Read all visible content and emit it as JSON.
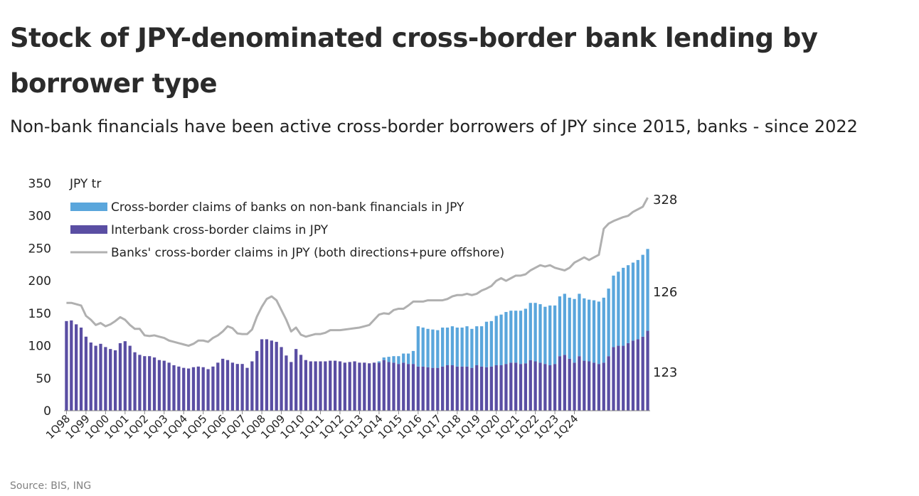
{
  "header": {
    "title": "Stock of JPY-denominated cross-border bank lending by borrower type",
    "subtitle": "Non-bank financials have been active cross-border borrowers of JPY since 2015, banks - since 2022"
  },
  "footer": {
    "source": "Source: BIS, ING"
  },
  "chart_data": {
    "type": "bar",
    "stacked": true,
    "ylabel": "JPY tr",
    "ylim": [
      0,
      350
    ],
    "yticks": [
      0,
      50,
      100,
      150,
      200,
      250,
      300,
      350
    ],
    "grid": false,
    "legend_position": "top-left",
    "x_tick_labels": [
      "1Q98",
      "1Q99",
      "1Q00",
      "1Q01",
      "1Q02",
      "1Q03",
      "1Q04",
      "1Q05",
      "1Q06",
      "1Q07",
      "1Q08",
      "1Q09",
      "1Q10",
      "1Q11",
      "1Q12",
      "1Q13",
      "1Q14",
      "1Q15",
      "1Q16",
      "1Q17",
      "1Q18",
      "1Q19",
      "1Q20",
      "1Q21",
      "1Q22",
      "1Q23",
      "1Q24"
    ],
    "end_labels": {
      "total_line": "328",
      "non_bank": "126",
      "interbank": "123"
    },
    "colors": {
      "interbank": "#5a4ea3",
      "non_bank": "#5aa6dc",
      "total_line": "#b0b0b0"
    },
    "series": [
      {
        "name": "Cross-border claims of banks on non-bank financials in JPY",
        "type": "bar",
        "stack_order": 2,
        "values": [
          0,
          0,
          0,
          0,
          0,
          0,
          0,
          0,
          0,
          0,
          0,
          0,
          0,
          0,
          0,
          0,
          0,
          0,
          0,
          0,
          0,
          0,
          0,
          0,
          0,
          0,
          0,
          0,
          0,
          0,
          0,
          0,
          0,
          0,
          0,
          0,
          0,
          0,
          0,
          0,
          0,
          0,
          0,
          0,
          0,
          0,
          0,
          0,
          0,
          0,
          0,
          0,
          0,
          0,
          0,
          0,
          0,
          0,
          0,
          0,
          0,
          0,
          0,
          0,
          2,
          4,
          8,
          10,
          12,
          14,
          16,
          20,
          62,
          60,
          59,
          59,
          58,
          60,
          58,
          60,
          60,
          60,
          62,
          60,
          60,
          62,
          70,
          70,
          76,
          78,
          80,
          80,
          80,
          82,
          84,
          88,
          90,
          90,
          88,
          92,
          90,
          92,
          94,
          94,
          98,
          96,
          96,
          95,
          96,
          96,
          100,
          104,
          110,
          114,
          120,
          120,
          120,
          122,
          126,
          126
        ]
      },
      {
        "name": "Interbank cross-border claims in JPY",
        "type": "bar",
        "stack_order": 1,
        "values": [
          138,
          139,
          133,
          128,
          114,
          105,
          100,
          103,
          98,
          95,
          93,
          104,
          107,
          100,
          90,
          86,
          84,
          84,
          82,
          78,
          77,
          74,
          70,
          68,
          66,
          65,
          67,
          68,
          67,
          64,
          68,
          74,
          80,
          78,
          74,
          72,
          72,
          66,
          76,
          92,
          110,
          110,
          108,
          106,
          98,
          85,
          75,
          95,
          86,
          78,
          76,
          76,
          76,
          76,
          77,
          77,
          76,
          74,
          75,
          76,
          74,
          74,
          73,
          74,
          74,
          78,
          75,
          74,
          72,
          74,
          72,
          72,
          68,
          68,
          67,
          66,
          66,
          68,
          70,
          70,
          68,
          68,
          68,
          66,
          70,
          68,
          67,
          68,
          70,
          70,
          72,
          74,
          74,
          72,
          73,
          78,
          76,
          74,
          72,
          70,
          72,
          84,
          86,
          80,
          74,
          84,
          77,
          76,
          74,
          72,
          74,
          84,
          98,
          100,
          100,
          104,
          108,
          110,
          114,
          123
        ]
      },
      {
        "name": "Banks' cross-border claims in JPY (both directions+pure offshore)",
        "type": "line",
        "values": [
          166,
          166,
          164,
          162,
          146,
          140,
          132,
          135,
          130,
          133,
          138,
          144,
          140,
          132,
          126,
          126,
          116,
          115,
          116,
          114,
          112,
          108,
          106,
          104,
          102,
          100,
          103,
          108,
          108,
          106,
          112,
          116,
          122,
          130,
          127,
          119,
          118,
          118,
          125,
          145,
          160,
          172,
          176,
          170,
          155,
          140,
          122,
          128,
          117,
          114,
          116,
          118,
          118,
          120,
          124,
          124,
          124,
          125,
          126,
          127,
          128,
          130,
          132,
          140,
          148,
          150,
          149,
          155,
          157,
          157,
          162,
          168,
          168,
          168,
          170,
          170,
          170,
          170,
          172,
          176,
          178,
          178,
          180,
          178,
          180,
          185,
          188,
          192,
          200,
          204,
          200,
          204,
          208,
          208,
          210,
          216,
          220,
          224,
          222,
          224,
          220,
          218,
          216,
          220,
          228,
          232,
          236,
          232,
          236,
          240,
          280,
          288,
          292,
          295,
          298,
          300,
          306,
          310,
          314,
          328
        ]
      }
    ]
  }
}
